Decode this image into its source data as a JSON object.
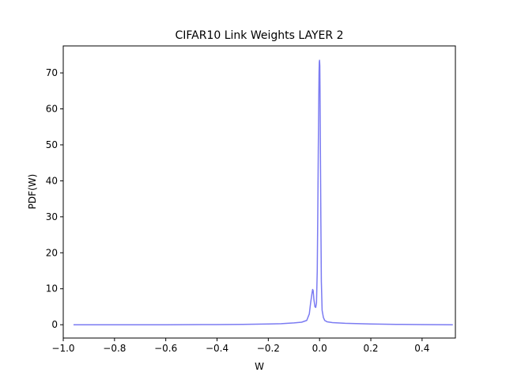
{
  "chart_data": {
    "type": "line",
    "title": "CIFAR10 Link Weights LAYER 2",
    "xlabel": "W",
    "ylabel": "PDF(W)",
    "xlim": [
      -1.0,
      0.53
    ],
    "ylim": [
      -3.7,
      77.5
    ],
    "xticks": [
      -1.0,
      -0.8,
      -0.6,
      -0.4,
      -0.2,
      0.0,
      0.2,
      0.4
    ],
    "xtick_labels": [
      "−1.0",
      "−0.8",
      "−0.6",
      "−0.4",
      "−0.2",
      "0.0",
      "0.2",
      "0.4"
    ],
    "yticks": [
      0,
      10,
      20,
      30,
      40,
      50,
      60,
      70
    ],
    "ytick_labels": [
      "0",
      "10",
      "20",
      "30",
      "40",
      "50",
      "60",
      "70"
    ],
    "grid": false,
    "series": [
      {
        "color": "#7b7bf2",
        "x": [
          -0.96,
          -0.8,
          -0.6,
          -0.4,
          -0.3,
          -0.2,
          -0.15,
          -0.1,
          -0.07,
          -0.05,
          -0.04,
          -0.035,
          -0.03,
          -0.027,
          -0.025,
          -0.022,
          -0.018,
          -0.015,
          -0.012,
          -0.009,
          -0.007,
          -0.005,
          -0.003,
          -0.002,
          -0.001,
          0.0,
          0.001,
          0.002,
          0.003,
          0.005,
          0.007,
          0.01,
          0.015,
          0.02,
          0.03,
          0.05,
          0.1,
          0.2,
          0.3,
          0.4,
          0.52
        ],
        "y": [
          0.0,
          0.0,
          0.0,
          0.05,
          0.1,
          0.2,
          0.3,
          0.5,
          0.7,
          1.2,
          3.0,
          6.0,
          8.5,
          9.8,
          9.5,
          7.0,
          5.0,
          4.8,
          6.0,
          15.0,
          30.0,
          48.0,
          63.0,
          70.0,
          73.0,
          73.5,
          72.0,
          64.0,
          52.0,
          30.0,
          12.0,
          4.0,
          2.0,
          1.2,
          0.8,
          0.6,
          0.4,
          0.2,
          0.1,
          0.05,
          0.0
        ]
      }
    ]
  }
}
